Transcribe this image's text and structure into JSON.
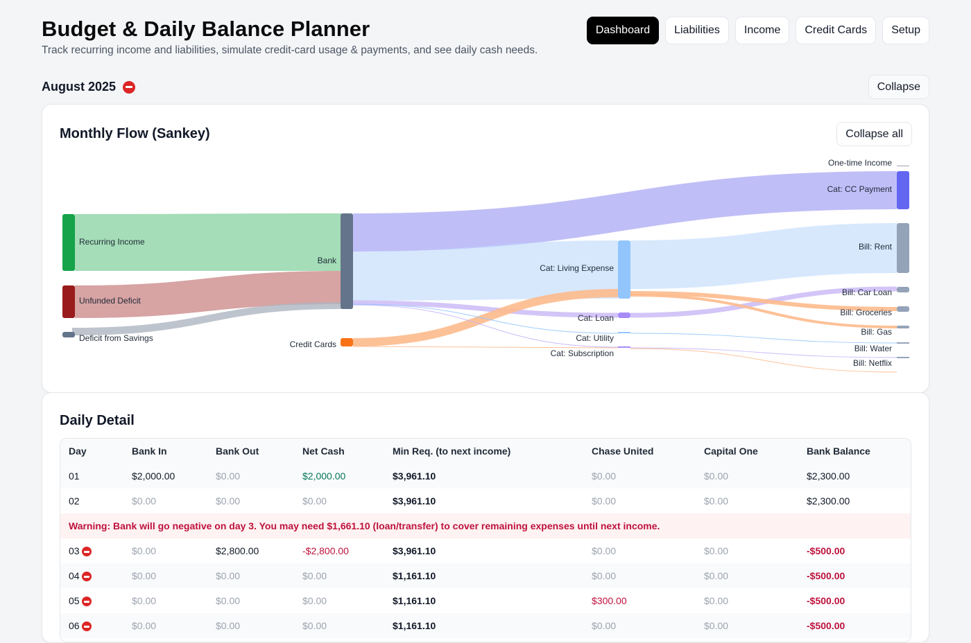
{
  "header": {
    "title": "Budget & Daily Balance Planner",
    "subtitle": "Track recurring income and liabilities, simulate credit-card usage & payments, and see daily cash needs."
  },
  "nav": [
    {
      "label": "Dashboard",
      "active": true
    },
    {
      "label": "Liabilities",
      "active": false
    },
    {
      "label": "Income",
      "active": false
    },
    {
      "label": "Credit Cards",
      "active": false
    },
    {
      "label": "Setup",
      "active": false
    }
  ],
  "month": {
    "title": "August 2025",
    "status_icon": "no-entry-icon",
    "collapse_label": "Collapse"
  },
  "sankey": {
    "title": "Monthly Flow (Sankey)",
    "collapse_all_label": "Collapse all",
    "nodes": {
      "recurring_income": "Recurring Income",
      "unfunded_deficit": "Unfunded Deficit",
      "deficit_savings": "Deficit from Savings",
      "bank": "Bank",
      "credit_cards": "Credit Cards",
      "cat_living": "Cat: Living Expense",
      "cat_loan": "Cat: Loan",
      "cat_utility": "Cat: Utility",
      "cat_subscription": "Cat: Subscription",
      "one_time_income": "One-time Income",
      "cat_cc_payment": "Cat: CC Payment",
      "bill_rent": "Bill: Rent",
      "bill_car_loan": "Bill: Car Loan",
      "bill_groceries": "Bill: Groceries",
      "bill_gas": "Bill: Gas",
      "bill_water": "Bill: Water",
      "bill_netflix": "Bill: Netflix"
    },
    "colors": {
      "recurring_income": "#16a34a",
      "unfunded_deficit": "#991b1b",
      "deficit_savings": "#64748b",
      "bank": "#64748b",
      "credit_cards": "#f97316",
      "cat_cc_payment": "#6366f1",
      "cat_living": "#93c5fd",
      "cat_loan": "#a78bfa",
      "bill": "#94a3b8"
    }
  },
  "detail": {
    "title": "Daily Detail",
    "columns": [
      "Day",
      "Bank In",
      "Bank Out",
      "Net Cash",
      "Min Req. (to next income)",
      "Chase United",
      "Capital One",
      "Bank Balance"
    ],
    "rows": [
      {
        "day": "01",
        "flag": false,
        "bank_in": "$2,000.00",
        "bank_out": "$0.00",
        "net": "$2,000.00",
        "min_req": "$3,961.10",
        "chase": "$0.00",
        "capone": "$0.00",
        "balance": "$2,300.00"
      },
      {
        "day": "02",
        "flag": false,
        "bank_in": "$0.00",
        "bank_out": "$0.00",
        "net": "$0.00",
        "min_req": "$3,961.10",
        "chase": "$0.00",
        "capone": "$0.00",
        "balance": "$2,300.00"
      },
      {
        "day": "03",
        "flag": true,
        "bank_in": "$0.00",
        "bank_out": "$2,800.00",
        "net": "-$2,800.00",
        "min_req": "$3,961.10",
        "chase": "$0.00",
        "capone": "$0.00",
        "balance": "-$500.00"
      },
      {
        "day": "04",
        "flag": true,
        "bank_in": "$0.00",
        "bank_out": "$0.00",
        "net": "$0.00",
        "min_req": "$1,161.10",
        "chase": "$0.00",
        "capone": "$0.00",
        "balance": "-$500.00"
      },
      {
        "day": "05",
        "flag": true,
        "bank_in": "$0.00",
        "bank_out": "$0.00",
        "net": "$0.00",
        "min_req": "$1,161.10",
        "chase": "$300.00",
        "capone": "$0.00",
        "balance": "-$500.00"
      },
      {
        "day": "06",
        "flag": true,
        "bank_in": "$0.00",
        "bank_out": "$0.00",
        "net": "$0.00",
        "min_req": "$1,161.10",
        "chase": "$0.00",
        "capone": "$0.00",
        "balance": "-$500.00"
      }
    ],
    "warning": "Warning: Bank will go negative on day 3. You may need $1,661.10 (loan/transfer) to cover remaining expenses until next income."
  }
}
